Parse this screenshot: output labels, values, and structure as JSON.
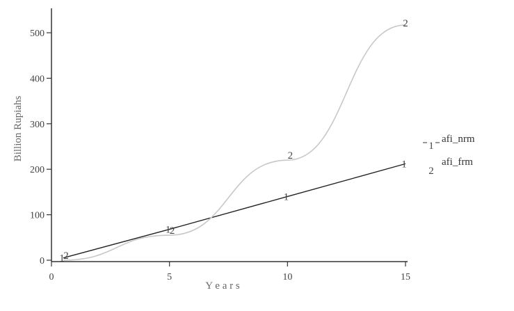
{
  "chart_data": {
    "type": "line",
    "x": [
      0.5,
      5,
      10,
      15
    ],
    "series": [
      {
        "name": "afi_nrm",
        "marker": "1",
        "color": "#222222",
        "values": [
          5,
          68,
          140,
          212
        ]
      },
      {
        "name": "afi_frm",
        "marker": "2",
        "color": "#c8c8c8",
        "values": [
          0,
          55,
          220,
          517
        ]
      }
    ],
    "xlabel": "Y e a r s",
    "ylabel": "Billion Rupiahs",
    "xlim": [
      0,
      15
    ],
    "ylim": [
      0,
      520
    ],
    "xticks": [
      "0",
      "5",
      "10",
      "15"
    ],
    "yticks": [
      "0",
      "100",
      "200",
      "300",
      "400",
      "500"
    ],
    "grid": false,
    "legend_position": "right"
  }
}
